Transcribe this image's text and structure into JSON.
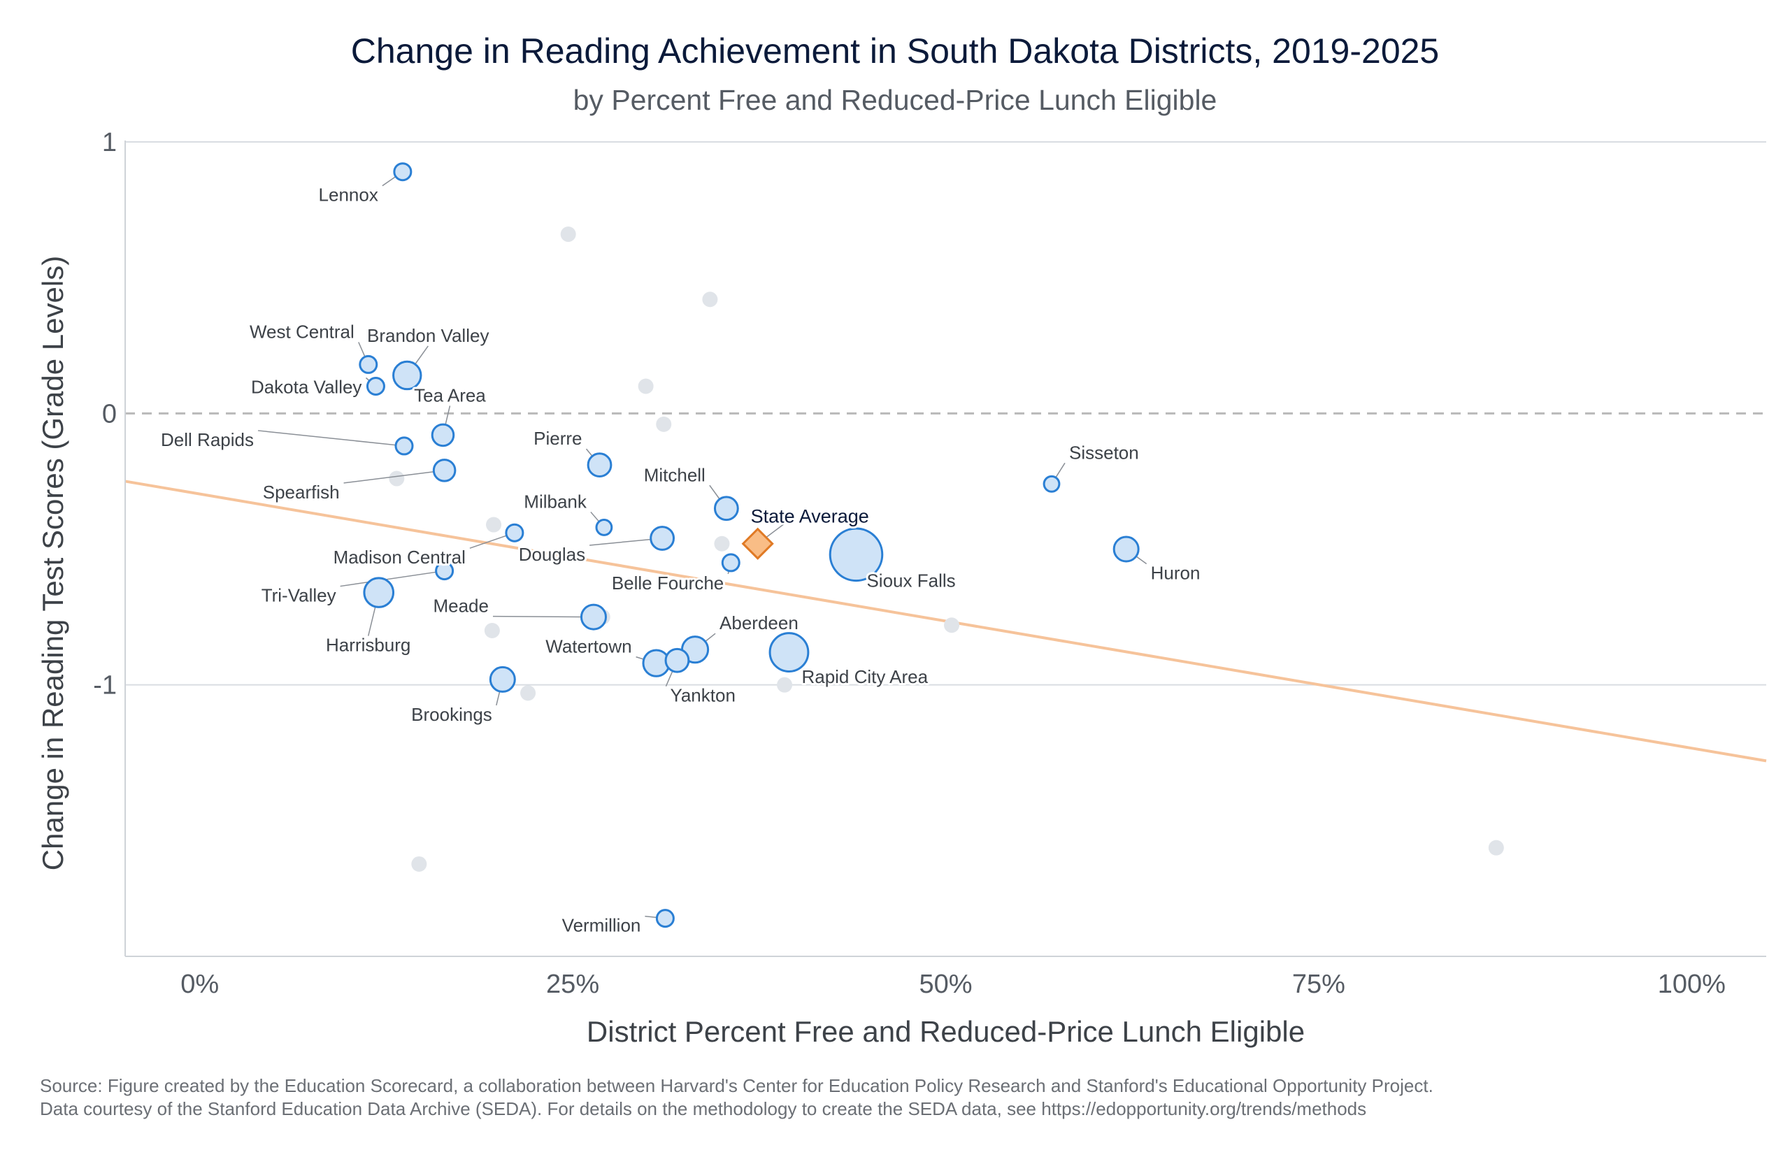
{
  "title": "Change in Reading Achievement in South Dakota Districts, 2019-2025",
  "subtitle": "by Percent Free and Reduced-Price Lunch Eligible",
  "source_lines": [
    "Source: Figure created by the Education Scorecard, a collaboration between Harvard's Center for Education Policy Research and Stanford's Educational Opportunity Project.",
    "Data courtesy of the Stanford Education Data Archive (SEDA). For details on the methodology to create the SEDA data, see https://edopportunity.org/trends/methods"
  ],
  "colors": {
    "highlight_fill": "#cfe3f7",
    "highlight_stroke": "#2a7fd4",
    "other_fill": "#e0e4e9",
    "state_avg_fill": "#f9bd86",
    "state_avg_stroke": "#e07a25",
    "trend_line": "#f6c39a",
    "zero_line": "#b9b9b9",
    "grid": "#d9dde2"
  },
  "chart_data": {
    "type": "scatter",
    "title": "Change in Reading Achievement in South Dakota Districts, 2019-2025",
    "subtitle": "by Percent Free and Reduced-Price Lunch Eligible",
    "xlabel": "District Percent Free and Reduced-Price Lunch Eligible",
    "ylabel": "Change in Reading Test Scores (Grade Levels)",
    "xlim": [
      -5,
      105
    ],
    "ylim": [
      -2,
      1
    ],
    "x_ticks": [
      0,
      25,
      50,
      75,
      100
    ],
    "x_tick_labels": [
      "0%",
      "25%",
      "50%",
      "75%",
      "100%"
    ],
    "y_ticks": [
      1,
      0,
      -1
    ],
    "y_tick_labels": [
      "1",
      "0",
      "-1"
    ],
    "zero_line": "dashed",
    "grid": "horizontal",
    "trend_line": {
      "x1": -5,
      "y1": -0.25,
      "x2": 105,
      "y2": -1.28
    },
    "state_average": {
      "label": "State Average",
      "x": 37.4,
      "y": -0.48
    },
    "labeled_districts": [
      {
        "name": "Lennox",
        "x": 13.6,
        "y": 0.89,
        "size": 1.0
      },
      {
        "name": "West Central",
        "x": 11.3,
        "y": 0.18,
        "size": 1.0
      },
      {
        "name": "Brandon Valley",
        "x": 13.9,
        "y": 0.14,
        "size": 1.7
      },
      {
        "name": "Dakota Valley",
        "x": 11.8,
        "y": 0.1,
        "size": 1.0
      },
      {
        "name": "Tea Area",
        "x": 16.3,
        "y": -0.08,
        "size": 1.3
      },
      {
        "name": "Dell Rapids",
        "x": 13.7,
        "y": -0.12,
        "size": 1.0
      },
      {
        "name": "Spearfish",
        "x": 16.4,
        "y": -0.21,
        "size": 1.3
      },
      {
        "name": "Pierre",
        "x": 26.8,
        "y": -0.19,
        "size": 1.4
      },
      {
        "name": "Mitchell",
        "x": 35.3,
        "y": -0.35,
        "size": 1.4
      },
      {
        "name": "Milbank",
        "x": 27.1,
        "y": -0.42,
        "size": 0.9
      },
      {
        "name": "Madison Central",
        "x": 21.1,
        "y": -0.44,
        "size": 1.0
      },
      {
        "name": "Douglas",
        "x": 31.0,
        "y": -0.46,
        "size": 1.4
      },
      {
        "name": "Sioux Falls",
        "x": 44.0,
        "y": -0.52,
        "size": 3.3
      },
      {
        "name": "Huron",
        "x": 62.1,
        "y": -0.5,
        "size": 1.5
      },
      {
        "name": "Sisseton",
        "x": 57.1,
        "y": -0.26,
        "size": 0.9
      },
      {
        "name": "Belle Fourche",
        "x": 35.6,
        "y": -0.55,
        "size": 1.0
      },
      {
        "name": "Tri-Valley",
        "x": 16.4,
        "y": -0.58,
        "size": 1.0
      },
      {
        "name": "Harrisburg",
        "x": 12.0,
        "y": -0.66,
        "size": 1.8
      },
      {
        "name": "Meade",
        "x": 26.4,
        "y": -0.75,
        "size": 1.5
      },
      {
        "name": "Aberdeen",
        "x": 33.2,
        "y": -0.87,
        "size": 1.6
      },
      {
        "name": "Watertown",
        "x": 30.6,
        "y": -0.92,
        "size": 1.6
      },
      {
        "name": "Yankton",
        "x": 32.0,
        "y": -0.91,
        "size": 1.4
      },
      {
        "name": "Rapid City Area",
        "x": 39.5,
        "y": -0.88,
        "size": 2.4
      },
      {
        "name": "Brookings",
        "x": 20.3,
        "y": -0.98,
        "size": 1.5
      },
      {
        "name": "Vermillion",
        "x": 31.2,
        "y": -1.86,
        "size": 1.0
      }
    ],
    "other_districts": [
      {
        "x": 24.7,
        "y": 0.66
      },
      {
        "x": 34.2,
        "y": 0.42
      },
      {
        "x": 29.9,
        "y": 0.1
      },
      {
        "x": 31.1,
        "y": -0.04
      },
      {
        "x": 13.2,
        "y": -0.24
      },
      {
        "x": 19.7,
        "y": -0.41
      },
      {
        "x": 35.0,
        "y": -0.48
      },
      {
        "x": 50.4,
        "y": -0.78
      },
      {
        "x": 19.6,
        "y": -0.8
      },
      {
        "x": 27.0,
        "y": -0.75
      },
      {
        "x": 22.0,
        "y": -1.03
      },
      {
        "x": 39.2,
        "y": -1.0
      },
      {
        "x": 14.7,
        "y": -1.66
      },
      {
        "x": 86.9,
        "y": -1.6
      }
    ]
  }
}
